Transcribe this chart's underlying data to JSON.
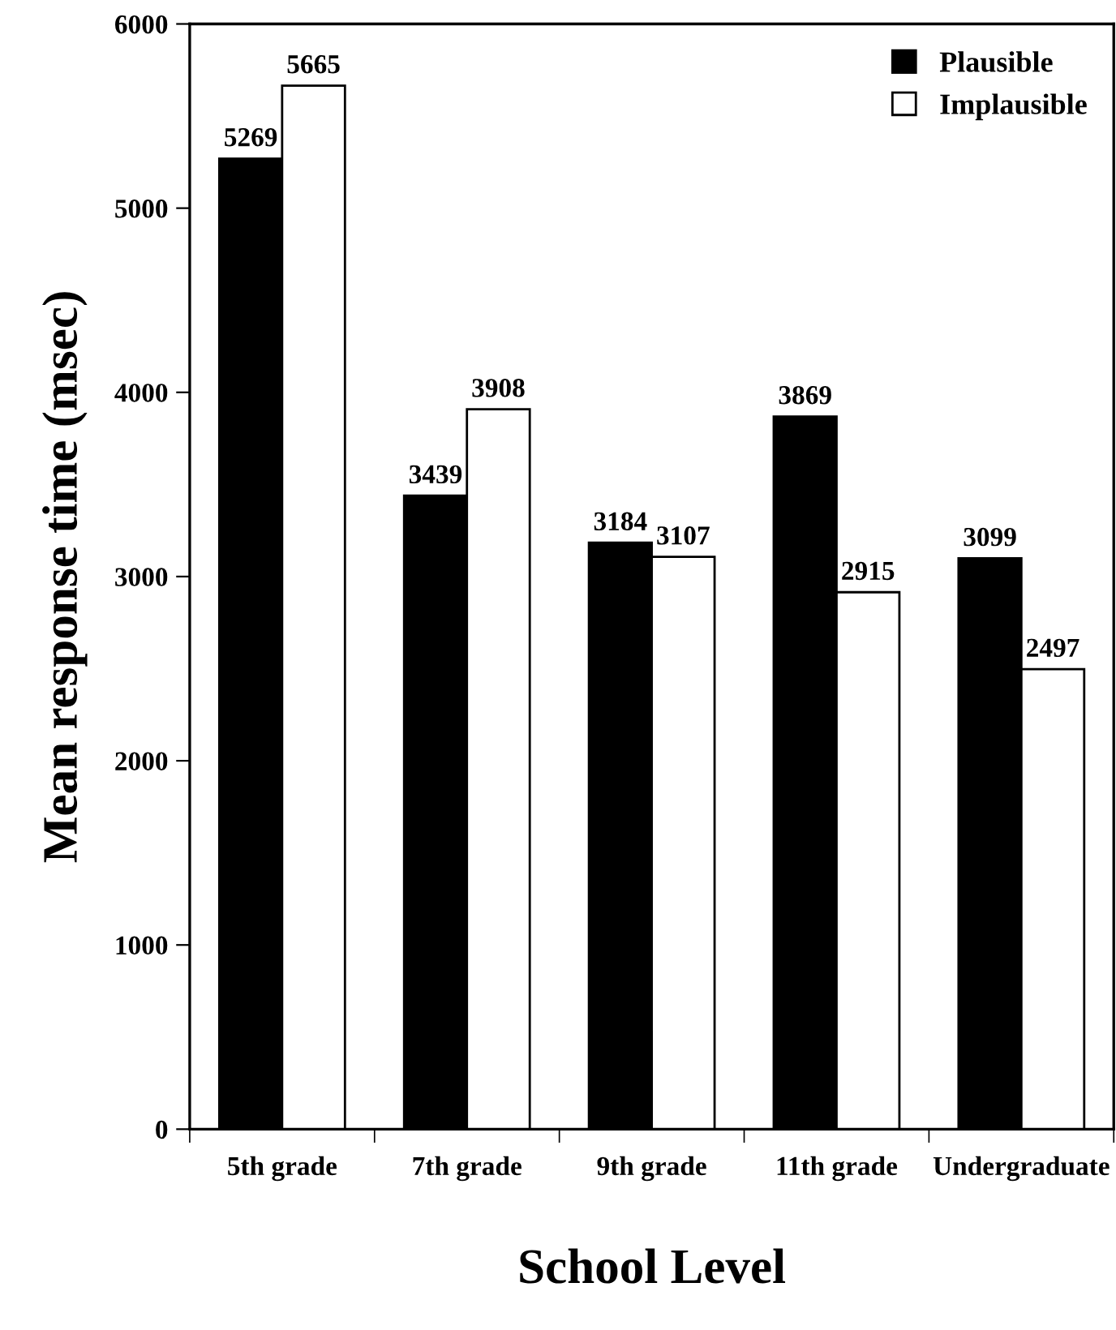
{
  "chart_data": {
    "type": "bar",
    "xlabel": "School Level",
    "ylabel": "Mean response time (msec)",
    "categories": [
      "5th grade",
      "7th grade",
      "9th grade",
      "11th grade",
      "Undergraduate"
    ],
    "series": [
      {
        "name": "Plausible",
        "color": "#000000",
        "values": [
          5269,
          3439,
          3184,
          3869,
          3099
        ]
      },
      {
        "name": "Implausible",
        "color": "#ffffff",
        "values": [
          5665,
          3908,
          3107,
          2915,
          2497
        ]
      }
    ],
    "ylim": [
      0,
      6000
    ],
    "yticks": [
      0,
      1000,
      2000,
      3000,
      4000,
      5000,
      6000
    ],
    "grid": false,
    "legend": "top right",
    "data_labels": true
  }
}
